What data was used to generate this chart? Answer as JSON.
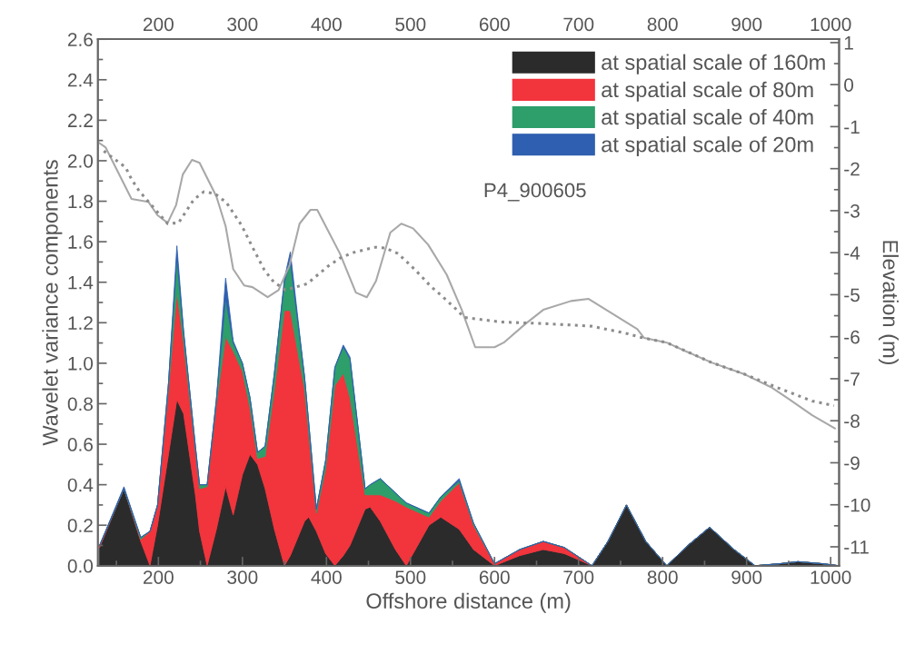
{
  "chart_data": {
    "type": "area",
    "stacked": true,
    "xlabel": "Offshore distance (m)",
    "ylabel": "Wavelet variance components",
    "y2label": "Elevation (m)",
    "annotations": [
      "P4_900605"
    ],
    "x": [
      130,
      159,
      179,
      190,
      199,
      212,
      222,
      230,
      244,
      249,
      258,
      269,
      280,
      289,
      300,
      309,
      318,
      327,
      338,
      350,
      357,
      374,
      379,
      388,
      399,
      410,
      420,
      428,
      446,
      452,
      464,
      482,
      495,
      522,
      536,
      558,
      575,
      600,
      630,
      658,
      683,
      716,
      735,
      757,
      780,
      805,
      830,
      856,
      885,
      910,
      940,
      961,
      990,
      1010
    ],
    "series": [
      {
        "name": "at spatial scale of 160m",
        "color": "#2b2b2b",
        "values": [
          0.09,
          0.38,
          0.12,
          0,
          0.2,
          0.55,
          0.82,
          0.75,
          0.35,
          0.17,
          0,
          0.18,
          0.39,
          0.25,
          0.45,
          0.55,
          0.5,
          0.38,
          0.18,
          0,
          0.05,
          0.22,
          0.24,
          0.17,
          0.06,
          0,
          0.05,
          0.1,
          0.28,
          0.29,
          0.22,
          0.08,
          0,
          0.2,
          0.24,
          0.18,
          0.08,
          0,
          0.05,
          0.08,
          0.06,
          0,
          0.12,
          0.3,
          0.12,
          0,
          0.1,
          0.19,
          0.08,
          0,
          0.01,
          0.02,
          0.01,
          0
        ]
      },
      {
        "name": "at spatial scale of 80m",
        "color": "#f2343c",
        "values": [
          0.01,
          0,
          0.01,
          0.17,
          0.1,
          0.32,
          0.53,
          0.35,
          0.22,
          0.21,
          0.39,
          0.62,
          0.74,
          0.81,
          0.51,
          0.23,
          0.03,
          0.16,
          0.69,
          1.26,
          1.21,
          0.65,
          0.41,
          0.09,
          0.42,
          0.89,
          0.9,
          0.73,
          0.07,
          0.06,
          0.13,
          0.24,
          0.29,
          0.04,
          0.08,
          0.23,
          0.12,
          0.01,
          0.03,
          0.04,
          0.03,
          0,
          0,
          0,
          0,
          0,
          0,
          0,
          0,
          0,
          0,
          0,
          0,
          0
        ]
      },
      {
        "name": "at spatial scale of 40m",
        "color": "#2e9e6a",
        "values": [
          0,
          0,
          0.01,
          0,
          0,
          0.03,
          0.17,
          0.05,
          0.02,
          0.02,
          0.01,
          0.02,
          0.19,
          0.04,
          0.04,
          0.05,
          0.03,
          0.05,
          0.08,
          0.14,
          0.24,
          0.06,
          0.05,
          0.02,
          0.04,
          0.09,
          0.13,
          0.19,
          0.03,
          0.05,
          0.08,
          0.04,
          0.02,
          0.02,
          0.02,
          0.01,
          0.01,
          0,
          0,
          0,
          0,
          0,
          0,
          0,
          0,
          0,
          0,
          0,
          0,
          0,
          0,
          0,
          0,
          0
        ]
      },
      {
        "name": "at spatial scale of 20m",
        "color": "#2f5fb0",
        "values": [
          0,
          0.01,
          0,
          0,
          0,
          0,
          0.06,
          0.01,
          0,
          0,
          0,
          0,
          0.1,
          0.01,
          0,
          0,
          0,
          0,
          0,
          0.02,
          0.05,
          0,
          0,
          0,
          0,
          0,
          0.01,
          0.01,
          0,
          0,
          0,
          0,
          0,
          0,
          0,
          0.01,
          0,
          0,
          0,
          0,
          0,
          0,
          0,
          0,
          0,
          0,
          0,
          0,
          0,
          0,
          0,
          0,
          0,
          0
        ]
      },
      {
        "type": "line",
        "axis": "y2",
        "color": "#a8a8a8",
        "line_style": "solid",
        "x": [
          129,
          137,
          168,
          188,
          199,
          211,
          221,
          229,
          240,
          249,
          269,
          280,
          289,
          302,
          312,
          330,
          343,
          356,
          368,
          381,
          389,
          416,
          435,
          448,
          459,
          476,
          489,
          503,
          521,
          543,
          561,
          577,
          600,
          611,
          637,
          658,
          691,
          712,
          770,
          778,
          805,
          827,
          859,
          896,
          929,
          950,
          978,
          1005
        ],
        "values": [
          -1.38,
          -1.49,
          -2.72,
          -2.79,
          -3.11,
          -3.29,
          -2.87,
          -2.14,
          -1.79,
          -1.86,
          -2.66,
          -3.37,
          -4.39,
          -4.78,
          -4.82,
          -5.06,
          -4.89,
          -4.3,
          -3.31,
          -2.98,
          -2.98,
          -4.02,
          -4.95,
          -5.06,
          -4.67,
          -3.52,
          -3.31,
          -3.42,
          -3.81,
          -4.52,
          -5.36,
          -6.25,
          -6.25,
          -6.14,
          -5.69,
          -5.36,
          -5.15,
          -5.1,
          -5.82,
          -6.03,
          -6.14,
          -6.34,
          -6.62,
          -6.88,
          -7.2,
          -7.48,
          -7.87,
          -8.18
        ]
      },
      {
        "type": "line",
        "axis": "y2",
        "color": "#8c8c8c",
        "line_style": "dotted",
        "x": [
          135,
          161,
          168,
          177,
          211,
          224,
          242,
          254,
          267,
          281,
          299,
          312,
          326,
          337,
          351,
          377,
          402,
          416,
          431,
          458,
          470,
          485,
          499,
          512,
          524,
          539,
          553,
          564,
          608,
          662,
          716,
          759,
          773,
          805,
          859,
          896,
          939,
          978,
          1004
        ],
        "values": [
          -1.58,
          -1.97,
          -2.25,
          -2.53,
          -3.31,
          -3.29,
          -2.74,
          -2.55,
          -2.59,
          -2.81,
          -3.35,
          -3.87,
          -4.41,
          -4.69,
          -4.89,
          -4.74,
          -4.32,
          -4.13,
          -4.0,
          -3.87,
          -3.89,
          -4.02,
          -4.28,
          -4.54,
          -4.8,
          -5.06,
          -5.32,
          -5.54,
          -5.65,
          -5.69,
          -5.75,
          -5.93,
          -6.01,
          -6.14,
          -6.62,
          -6.88,
          -7.23,
          -7.53,
          -7.64
        ]
      }
    ],
    "xlim": [
      128,
      1010
    ],
    "xticks": [
      {
        "value": 150,
        "label": null
      },
      200,
      {
        "value": 250,
        "label": null
      },
      300,
      {
        "value": 350,
        "label": null
      },
      400,
      {
        "value": 450,
        "label": null
      },
      500,
      {
        "value": 550,
        "label": null
      },
      600,
      {
        "value": 650,
        "label": null
      },
      700,
      {
        "value": 750,
        "label": null
      },
      800,
      {
        "value": 850,
        "label": null
      },
      900,
      {
        "value": 950,
        "label": null
      },
      1000
    ],
    "x2lim": [
      128,
      1010
    ],
    "x2ticks": [
      200,
      300,
      400,
      500,
      600,
      700,
      800,
      900,
      1000
    ],
    "ylim": [
      0,
      2.6
    ],
    "yticks": [
      {
        "value": 0,
        "label": "0.0"
      },
      {
        "value": 0.1,
        "label": null
      },
      {
        "value": 0.2,
        "label": "0.2"
      },
      {
        "value": 0.3,
        "label": null
      },
      {
        "value": 0.4,
        "label": "0.4"
      },
      {
        "value": 0.5,
        "label": null
      },
      {
        "value": 0.6,
        "label": "0.6"
      },
      {
        "value": 0.7,
        "label": null
      },
      {
        "value": 0.8,
        "label": "0.8"
      },
      {
        "value": 0.9,
        "label": null
      },
      {
        "value": 1.0,
        "label": "1.0"
      },
      {
        "value": 1.1,
        "label": null
      },
      {
        "value": 1.2,
        "label": "1.2"
      },
      {
        "value": 1.3,
        "label": null
      },
      {
        "value": 1.4,
        "label": "1.4"
      },
      {
        "value": 1.5,
        "label": null
      },
      {
        "value": 1.6,
        "label": "1.6"
      },
      {
        "value": 1.7,
        "label": null
      },
      {
        "value": 1.8,
        "label": "1.8"
      },
      {
        "value": 1.9,
        "label": null
      },
      {
        "value": 2.0,
        "label": "2.0"
      },
      {
        "value": 2.1,
        "label": null
      },
      {
        "value": 2.2,
        "label": "2.2"
      },
      {
        "value": 2.3,
        "label": null
      },
      {
        "value": 2.4,
        "label": "2.4"
      },
      {
        "value": 2.5,
        "label": null
      },
      {
        "value": 2.6,
        "label": "2.6"
      }
    ],
    "y2lim": [
      -11.45,
      1.08
    ],
    "y2ticks": [
      -11,
      {
        "value": -10.5,
        "label": null
      },
      -10,
      {
        "value": -9.5,
        "label": null
      },
      -9,
      {
        "value": -8.5,
        "label": null
      },
      -8,
      {
        "value": -7.5,
        "label": null
      },
      -7,
      {
        "value": -6.5,
        "label": null
      },
      -6,
      {
        "value": -5.5,
        "label": null
      },
      -5,
      {
        "value": -4.5,
        "label": null
      },
      -4,
      {
        "value": -3.5,
        "label": null
      },
      -3,
      {
        "value": -2.5,
        "label": null
      },
      -2,
      {
        "value": -1.5,
        "label": null
      },
      -1,
      {
        "value": -0.5,
        "label": null
      },
      0,
      {
        "value": 0.5,
        "label": null
      },
      1
    ],
    "grid": false,
    "legend": "top right"
  }
}
